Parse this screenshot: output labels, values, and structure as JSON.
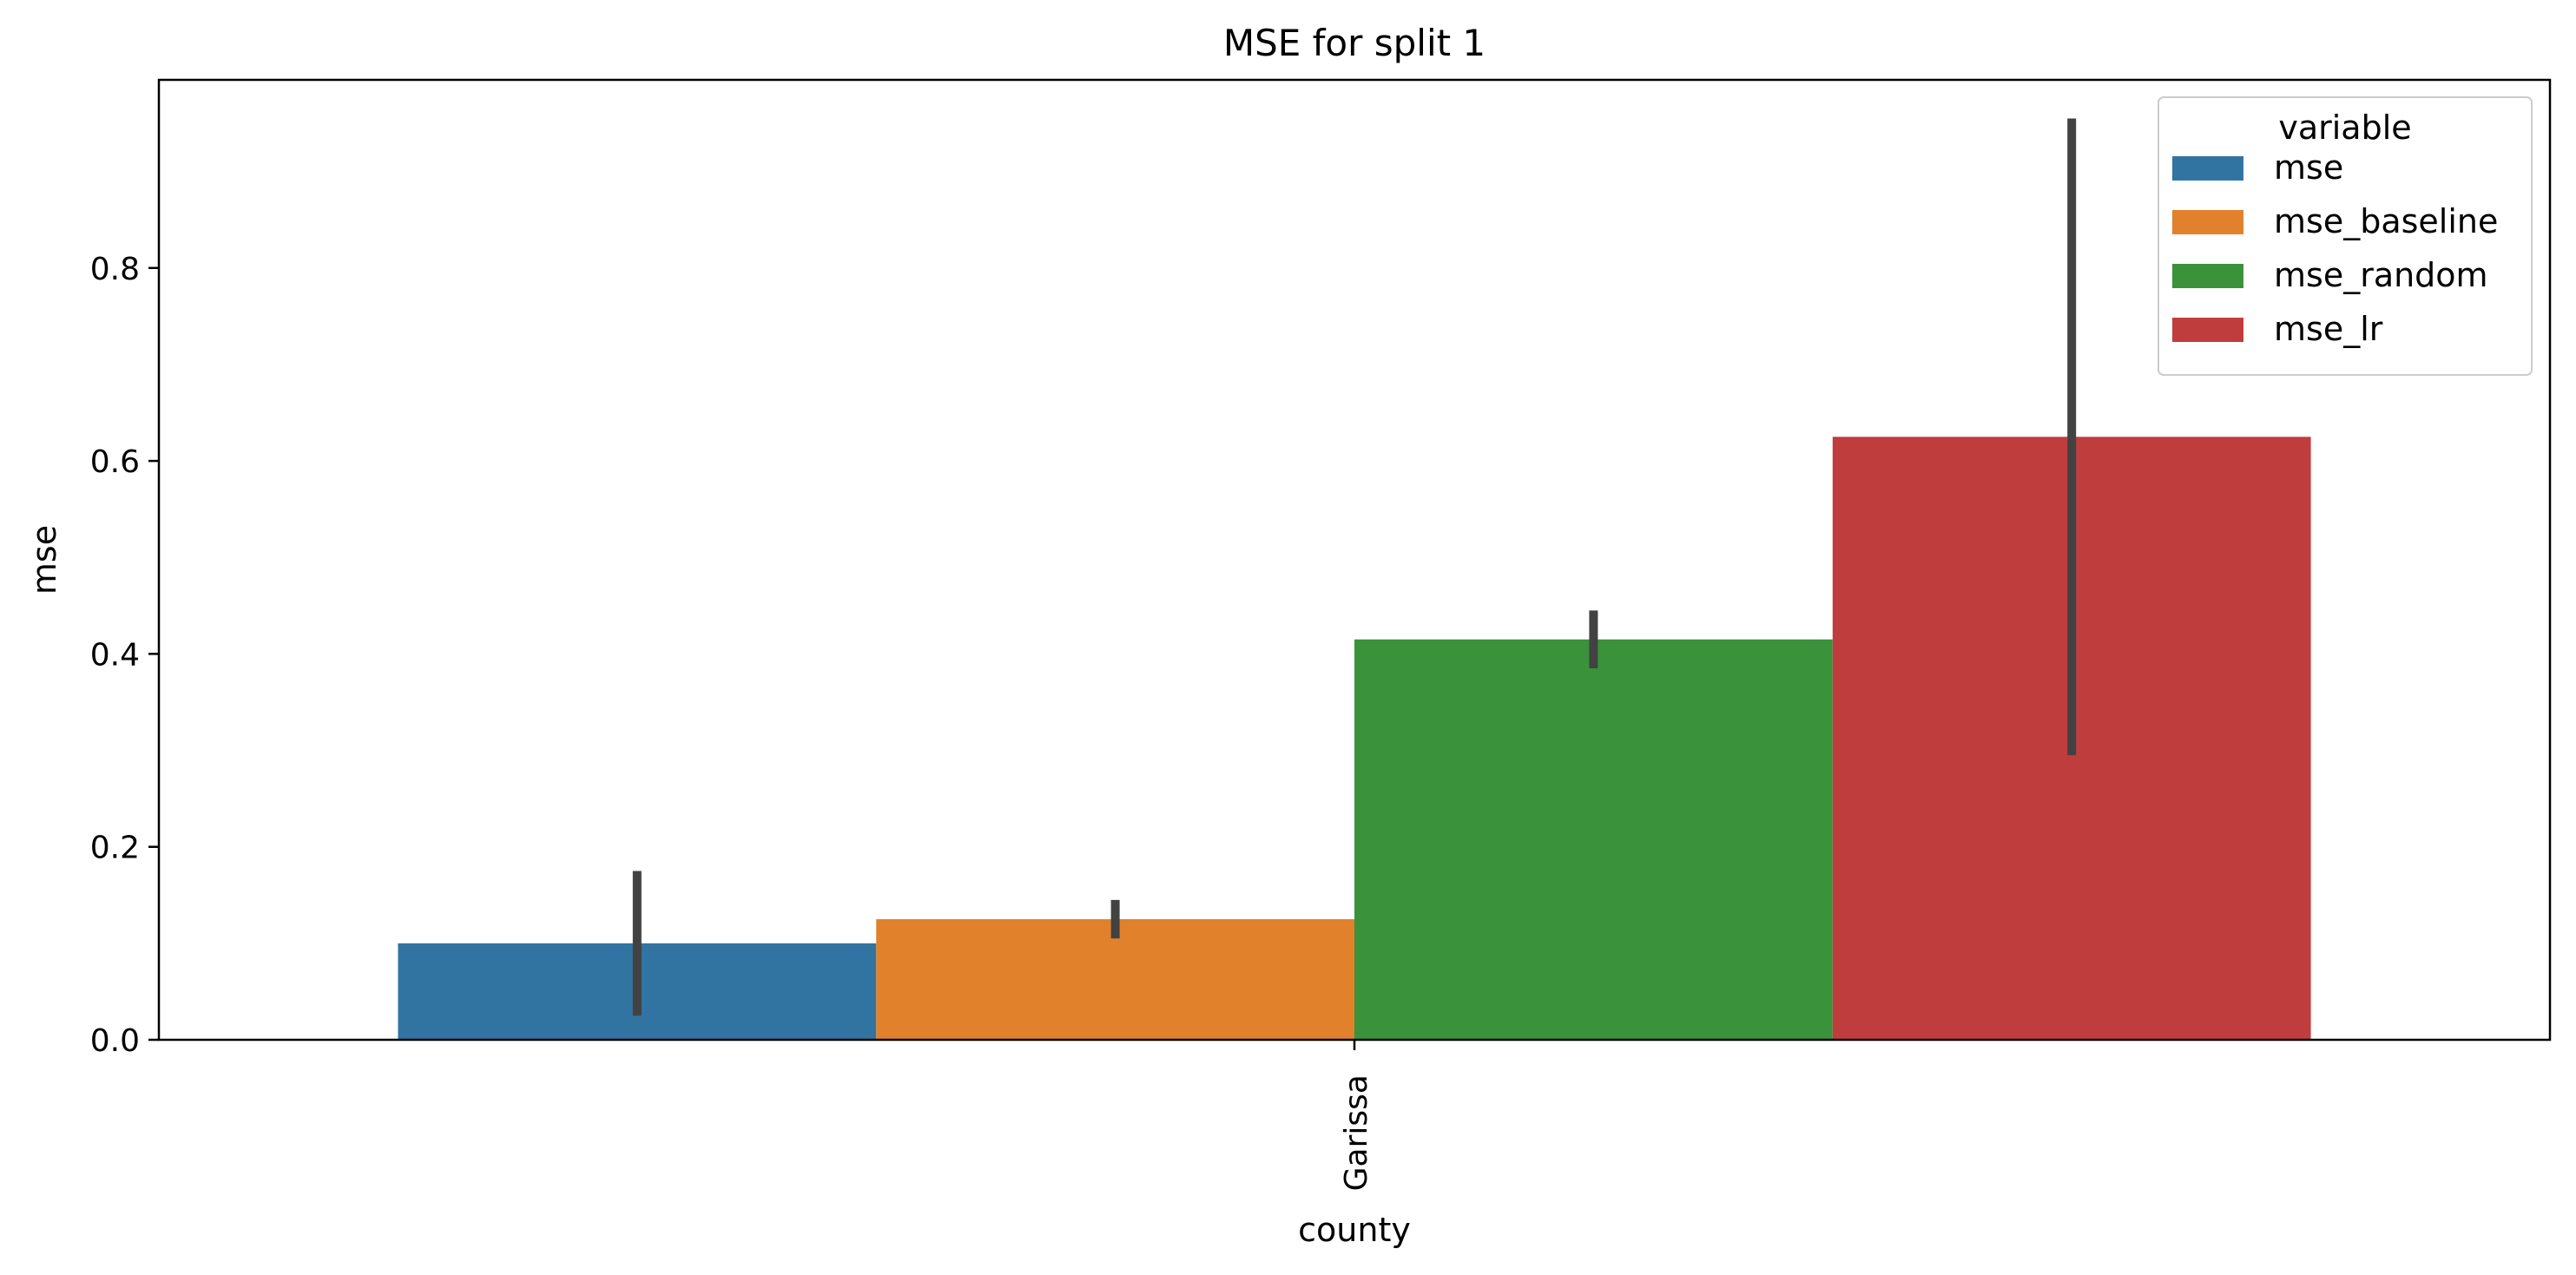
{
  "chart_data": {
    "type": "bar",
    "title": "MSE for split 1",
    "xlabel": "county",
    "ylabel": "mse",
    "categories": [
      "Garissa"
    ],
    "ylim": [
      0,
      0.995
    ],
    "yticks": [
      0.0,
      0.2,
      0.4,
      0.6,
      0.8
    ],
    "ytick_labels": [
      "0.0",
      "0.2",
      "0.4",
      "0.6",
      "0.8"
    ],
    "grid": false,
    "legend": {
      "title": "variable",
      "placement": "top-right"
    },
    "series": [
      {
        "name": "mse",
        "color": "#3274a1",
        "values": [
          0.1
        ],
        "ci": [
          [
            0.025,
            0.175
          ]
        ]
      },
      {
        "name": "mse_baseline",
        "color": "#e1812c",
        "values": [
          0.125
        ],
        "ci": [
          [
            0.105,
            0.145
          ]
        ]
      },
      {
        "name": "mse_random",
        "color": "#3a923a",
        "values": [
          0.415
        ],
        "ci": [
          [
            0.385,
            0.445
          ]
        ]
      },
      {
        "name": "mse_lr",
        "color": "#c03d3e",
        "values": [
          0.625
        ],
        "ci": [
          [
            0.295,
            0.955
          ]
        ]
      }
    ],
    "errorbar_color": "#424242"
  }
}
